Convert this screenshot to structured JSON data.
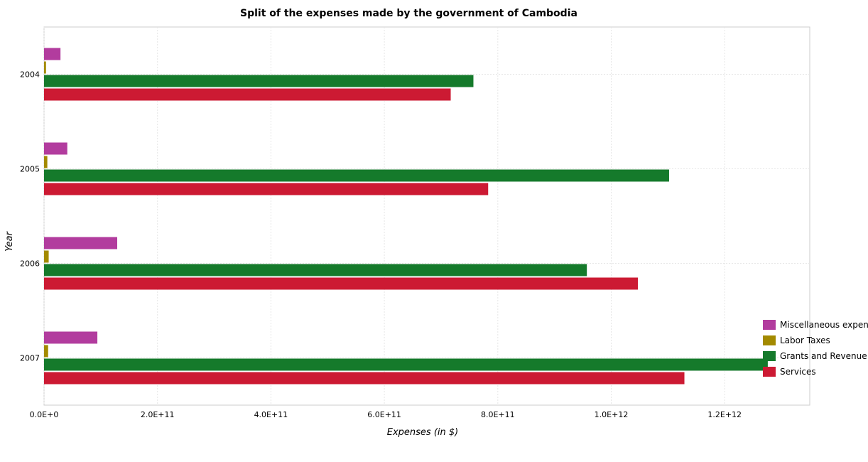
{
  "chart_data": {
    "type": "bar",
    "orientation": "horizontal",
    "title": "Split of the expenses made by the government of Cambodia",
    "xlabel": "Expenses (in $)",
    "ylabel": "Year",
    "categories": [
      "2004",
      "2005",
      "2006",
      "2007"
    ],
    "xlim": [
      0,
      1350000000000.0
    ],
    "xticks": [
      0,
      200000000000.0,
      400000000000.0,
      600000000000.0,
      800000000000.0,
      1000000000000.0,
      1200000000000.0
    ],
    "xtick_labels": [
      "0.0E+0",
      "2.0E+11",
      "4.0E+11",
      "6.0E+11",
      "8.0E+11",
      "1.0E+12",
      "1.2E+12"
    ],
    "grid": true,
    "legend_position": "bottom-right",
    "series": [
      {
        "name": "Miscellaneous expenses",
        "color": "#b23c9e",
        "values": [
          29000000000.0,
          41000000000.0,
          129000000000.0,
          94000000000.0
        ]
      },
      {
        "name": "Labor Taxes",
        "color": "#a38a00",
        "values": [
          3500000000.0,
          5800000000.0,
          8200000000.0,
          7200000000.0
        ]
      },
      {
        "name": "Grants and Revenue",
        "color": "#157a2b",
        "values": [
          757000000000.0,
          1102000000000.0,
          957000000000.0,
          1276000000000.0
        ]
      },
      {
        "name": "Services",
        "color": "#cc1a33",
        "values": [
          717000000000.0,
          783000000000.0,
          1047000000000.0,
          1129000000000.0
        ]
      }
    ]
  }
}
